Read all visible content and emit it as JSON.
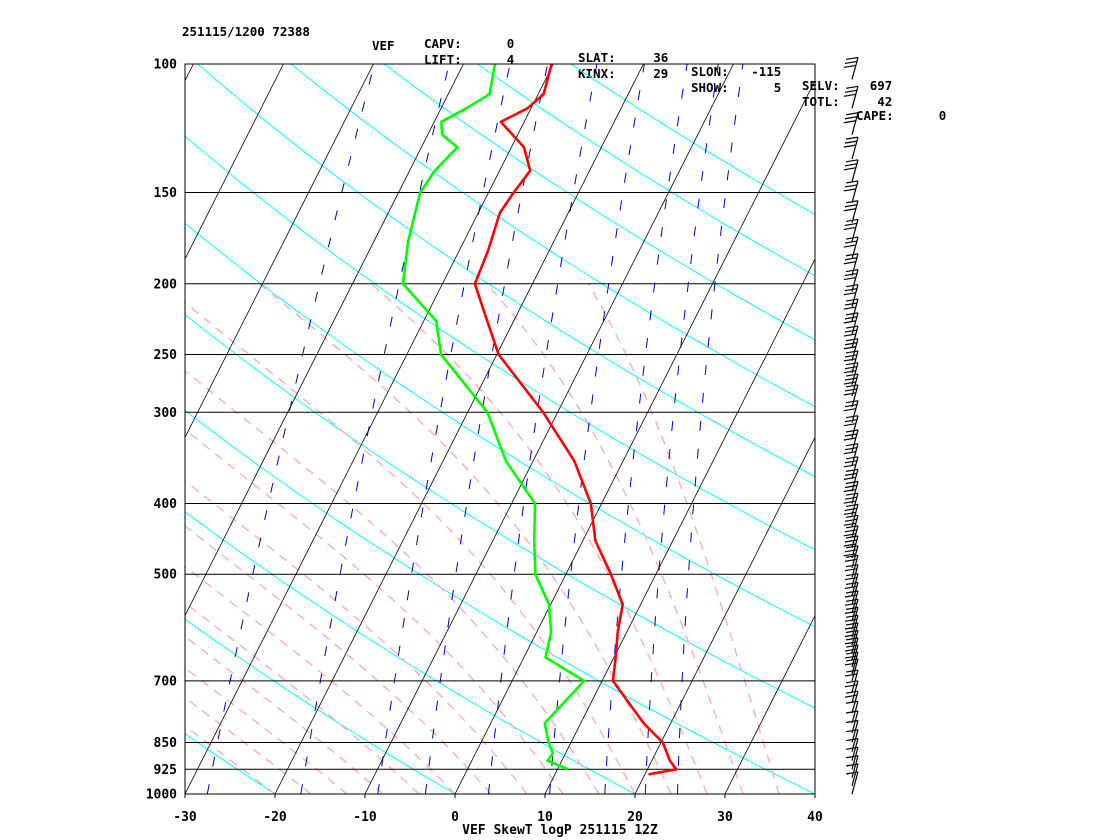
{
  "header": {
    "line1": [
      {
        "id": "stamp",
        "text": "251115/1200 72388"
      },
      {
        "id": "station",
        "text": "VEF"
      },
      {
        "id": "lift",
        "text": "LIFT:      4"
      },
      {
        "id": "kinx",
        "text": "KINX:     29"
      },
      {
        "id": "show",
        "text": "SHOW:      5"
      },
      {
        "id": "totl",
        "text": "TOTL:     42"
      },
      {
        "id": "cape",
        "text": "CAPE:      0"
      }
    ],
    "line2": [
      {
        "id": "capv",
        "text": "CAPV:      0"
      },
      {
        "id": "slat",
        "text": "SLAT:     36"
      },
      {
        "id": "slon",
        "text": "SLON:   -115"
      },
      {
        "id": "selv",
        "text": "SELV:    697"
      }
    ]
  },
  "chart_data": {
    "type": "line",
    "title": "VEF SkewT logP 251115 12Z",
    "xlabel": "",
    "ylabel": "",
    "x_ticks": [
      -30,
      -20,
      -10,
      0,
      10,
      20,
      30,
      40
    ],
    "y_ticks": [
      100,
      150,
      200,
      250,
      300,
      400,
      500,
      700,
      850,
      925,
      1000
    ],
    "pressure_range": [
      1000,
      100
    ],
    "temperature_range_at_1000hPa": [
      -30,
      40
    ],
    "log_pressure_axis": true,
    "skewed_isotherms": true,
    "grid": true,
    "colors": {
      "temperature": "#ff0000",
      "dewpoint": "#00ff00",
      "isotherm": "#000000",
      "dry_adiabat": "#00ffff",
      "moist_adiabat": "#ffb0b8",
      "mixing_ratio": "#0000c0",
      "wind": "#000000"
    },
    "series": [
      {
        "name": "temperature",
        "points": [
          [
            940,
            20.4
          ],
          [
            925,
            23.2
          ],
          [
            900,
            22.0
          ],
          [
            850,
            20.2
          ],
          [
            800,
            17.0
          ],
          [
            700,
            11.2
          ],
          [
            650,
            10.2
          ],
          [
            600,
            9.0
          ],
          [
            550,
            8.0
          ],
          [
            500,
            5.0
          ],
          [
            450,
            1.4
          ],
          [
            400,
            -1.2
          ],
          [
            350,
            -5.4
          ],
          [
            300,
            -11.6
          ],
          [
            250,
            -19.8
          ],
          [
            220,
            -23.6
          ],
          [
            200,
            -26.4
          ],
          [
            180,
            -26.8
          ],
          [
            160,
            -27.6
          ],
          [
            150,
            -27.2
          ],
          [
            140,
            -26.6
          ],
          [
            130,
            -28.6
          ],
          [
            120,
            -32.6
          ],
          [
            115,
            -30.4
          ],
          [
            110,
            -29.4
          ],
          [
            100,
            -30.2
          ]
        ]
      },
      {
        "name": "dewpoint",
        "points": [
          [
            925,
            11.2
          ],
          [
            900,
            8.4
          ],
          [
            880,
            8.6
          ],
          [
            850,
            7.5
          ],
          [
            800,
            6.0
          ],
          [
            700,
            8.0
          ],
          [
            650,
            2.4
          ],
          [
            600,
            1.6
          ],
          [
            550,
            -0.2
          ],
          [
            500,
            -3.4
          ],
          [
            450,
            -5.4
          ],
          [
            400,
            -7.4
          ],
          [
            350,
            -13.0
          ],
          [
            300,
            -17.8
          ],
          [
            250,
            -26.2
          ],
          [
            225,
            -28.6
          ],
          [
            200,
            -34.4
          ],
          [
            175,
            -36.2
          ],
          [
            150,
            -37.6
          ],
          [
            140,
            -37.2
          ],
          [
            130,
            -36.0
          ],
          [
            125,
            -38.4
          ],
          [
            120,
            -39.2
          ],
          [
            115,
            -37.2
          ],
          [
            110,
            -35.4
          ],
          [
            100,
            -36.5
          ]
        ]
      }
    ],
    "wind_barbs_present": true
  }
}
